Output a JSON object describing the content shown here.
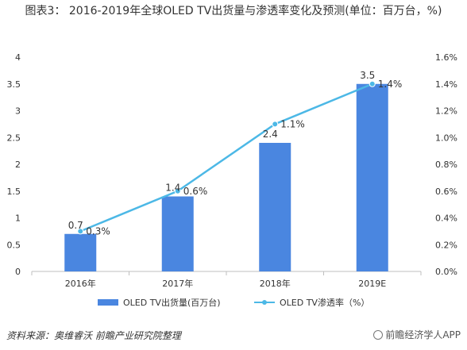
{
  "title": "图表3： 2016-2019年全球OLED TV出货量与渗透率变化及预测(单位：百万台，%)",
  "colors": {
    "bar": "#4a86e0",
    "line": "#4cb8e6",
    "axis": "#bfbfbf",
    "text": "#333333"
  },
  "chart_data": {
    "type": "bar",
    "categories": [
      "2016年",
      "2017年",
      "2018年",
      "2019E"
    ],
    "series": [
      {
        "name": "OLED TV出货量(百万台)",
        "type": "bar",
        "axis": "left",
        "values": [
          0.7,
          1.4,
          2.4,
          3.5
        ],
        "labels": [
          "0.7",
          "1.4",
          "2.4",
          "3.5"
        ]
      },
      {
        "name": "OLED TV渗透率（%）",
        "type": "line",
        "axis": "right",
        "values": [
          0.3,
          0.6,
          1.1,
          1.4
        ],
        "labels": [
          "0.3%",
          "0.6%",
          "1.1%",
          "1.4%"
        ]
      }
    ],
    "ylim_left": [
      0,
      4
    ],
    "yticks_left": [
      "0",
      "0.5",
      "1",
      "1.5",
      "2",
      "2.5",
      "3",
      "3.5",
      "4"
    ],
    "ylim_right": [
      0,
      1.6
    ],
    "yticks_right": [
      "0.0%",
      "0.2%",
      "0.4%",
      "0.6%",
      "0.8%",
      "1.0%",
      "1.2%",
      "1.4%",
      "1.6%"
    ],
    "legend_position": "bottom",
    "grid": false
  },
  "legend": {
    "bar_label": "OLED TV出货量(百万台)",
    "line_label": "OLED TV渗透率（%）"
  },
  "footer": {
    "source": "资料来源：奥维睿沃 前瞻产业研究院整理",
    "brand": "前瞻经济学人APP"
  }
}
